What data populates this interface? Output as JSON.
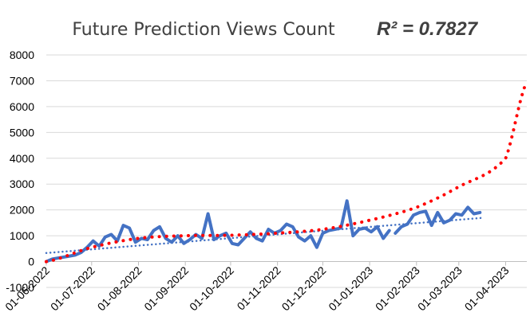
{
  "chart_data": {
    "type": "line",
    "title": "Future Prediction Views Count",
    "annotation": "R² = 0.7827",
    "xlabel": "",
    "ylabel": "",
    "x_axis_type": "date",
    "xlim": [
      "01-06-2022",
      "15-04-2023"
    ],
    "ylim": [
      -1000,
      8000
    ],
    "yticks": [
      -1000,
      0,
      1000,
      2000,
      3000,
      4000,
      5000,
      6000,
      7000,
      8000
    ],
    "xtick_labels": [
      "01-06-2022",
      "01-07-2022",
      "01-08-2022",
      "01-09-2022",
      "01-10-2022",
      "01-11-2022",
      "01-12-2022",
      "01-01-2023",
      "01-02-2023",
      "01-03-2023",
      "01-04-2023"
    ],
    "grid": {
      "horizontal": true,
      "vertical": false
    },
    "legend": "none",
    "series": [
      {
        "role": "actual",
        "style": "solid",
        "color": "#4472C4",
        "x": [
          "2022-06-01",
          "2022-06-05",
          "2022-06-10",
          "2022-06-15",
          "2022-06-20",
          "2022-06-24",
          "2022-06-28",
          "2022-07-02",
          "2022-07-06",
          "2022-07-10",
          "2022-07-14",
          "2022-07-18",
          "2022-07-22",
          "2022-07-26",
          "2022-07-30",
          "2022-08-03",
          "2022-08-07",
          "2022-08-11",
          "2022-08-15",
          "2022-08-19",
          "2022-08-23",
          "2022-08-27",
          "2022-08-31",
          "2022-09-04",
          "2022-09-08",
          "2022-09-12",
          "2022-09-16",
          "2022-09-20",
          "2022-09-24",
          "2022-09-28",
          "2022-10-02",
          "2022-10-06",
          "2022-10-10",
          "2022-10-14",
          "2022-10-18",
          "2022-10-22",
          "2022-10-26",
          "2022-10-30",
          "2022-11-03",
          "2022-11-07",
          "2022-11-11",
          "2022-11-15",
          "2022-11-19",
          "2022-11-23",
          "2022-11-27",
          "2022-12-01",
          "2022-12-05",
          "2022-12-09",
          "2022-12-13",
          "2022-12-17",
          "2022-12-21",
          "2022-12-25",
          "2022-12-29",
          "2023-01-02",
          "2023-01-06",
          "2023-01-10",
          "2023-01-14"
        ],
        "y": [
          0,
          100,
          150,
          200,
          250,
          350,
          550,
          800,
          600,
          950,
          1050,
          800,
          1400,
          1300,
          750,
          900,
          850,
          1200,
          1350,
          900,
          750,
          1000,
          700,
          850,
          1050,
          900,
          1850,
          850,
          1000,
          1100,
          700,
          650,
          900,
          1150,
          900,
          800,
          1250,
          1100,
          1200,
          1450,
          1350,
          950,
          800,
          1000,
          550,
          1100,
          1200,
          1250,
          1300,
          2350,
          1000,
          1250,
          1300,
          1150,
          1350,
          900,
          1200
        ]
      },
      {
        "role": "actual-continued",
        "style": "solid",
        "color": "#4472C4",
        "x": [
          "2023-01-18",
          "2023-01-22",
          "2023-01-26",
          "2023-01-30",
          "2023-02-03",
          "2023-02-07",
          "2023-02-11",
          "2023-02-15",
          "2023-02-19",
          "2023-02-23",
          "2023-02-27",
          "2023-03-03",
          "2023-03-07",
          "2023-03-11",
          "2023-03-15"
        ],
        "y": [
          1100,
          1350,
          1450,
          1800,
          1900,
          1950,
          1400,
          1900,
          1500,
          1600,
          1850,
          1800,
          2100,
          1850,
          1900
        ]
      },
      {
        "role": "linear-trend",
        "style": "dotted",
        "color": "#4472C4",
        "x": [
          "2022-06-01",
          "2023-03-18"
        ],
        "y": [
          330,
          1700
        ]
      },
      {
        "role": "polynomial-trend",
        "style": "dotted",
        "color": "#FF0000",
        "x": [
          "2022-06-01",
          "2022-07-01",
          "2022-08-01",
          "2022-09-01",
          "2022-10-01",
          "2022-11-01",
          "2022-12-01",
          "2023-01-01",
          "2023-02-01",
          "2023-03-01",
          "2023-04-01",
          "2023-04-15"
        ],
        "y": [
          0,
          550,
          900,
          1000,
          1020,
          1100,
          1250,
          1600,
          2100,
          2900,
          4000,
          6950
        ]
      }
    ]
  }
}
